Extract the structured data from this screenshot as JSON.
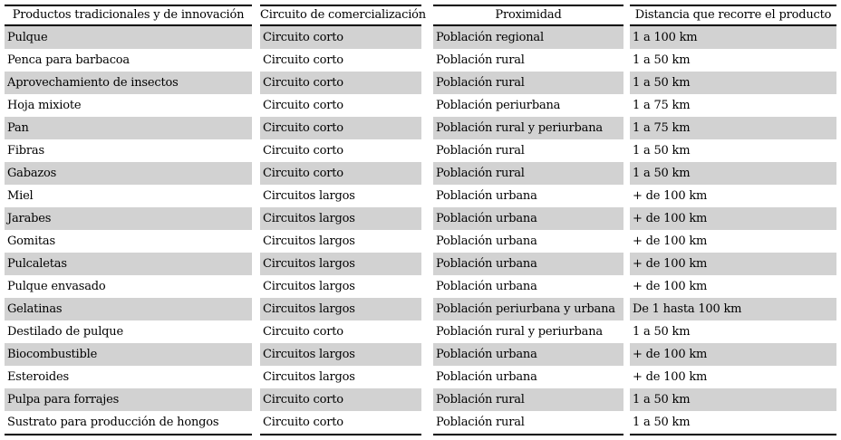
{
  "table": {
    "columns": [
      "Productos tradicionales y de innovación",
      "Circuito de comercialización",
      "Proximidad",
      "Distancia que recorre el producto"
    ],
    "rows": [
      [
        "Pulque",
        "Circuito corto",
        "Población regional",
        "1 a 100 km"
      ],
      [
        "Penca para barbacoa",
        "Circuito corto",
        "Población rural",
        "1 a 50 km"
      ],
      [
        "Aprovechamiento de insectos",
        "Circuito corto",
        "Población rural",
        "1 a 50 km"
      ],
      [
        "Hoja mixiote",
        "Circuito corto",
        "Población periurbana",
        "1 a 75 km"
      ],
      [
        "Pan",
        "Circuito corto",
        "Población rural y periurbana",
        "1 a 75 km"
      ],
      [
        "Fibras",
        "Circuito corto",
        "Población rural",
        "1 a 50 km"
      ],
      [
        "Gabazos",
        "Circuito corto",
        "Población rural",
        "1 a 50 km"
      ],
      [
        "Miel",
        "Circuitos largos",
        "Población urbana",
        "+ de 100 km"
      ],
      [
        "Jarabes",
        "Circuitos largos",
        "Población urbana",
        "+ de 100 km"
      ],
      [
        "Gomitas",
        "Circuitos largos",
        "Población urbana",
        "+ de 100 km"
      ],
      [
        "Pulcaletas",
        "Circuitos largos",
        "Población urbana",
        "+ de 100 km"
      ],
      [
        "Pulque envasado",
        "Circuitos largos",
        "Población urbana",
        "+ de 100 km"
      ],
      [
        "Gelatinas",
        "Circuitos largos",
        "Población periurbana y urbana",
        "De 1 hasta 100 km"
      ],
      [
        "Destilado de pulque",
        "Circuito corto",
        "Población rural y periurbana",
        "1 a 50 km"
      ],
      [
        "Biocombustible",
        "Circuitos largos",
        "Población urbana",
        "+ de 100 km"
      ],
      [
        "Esteroides",
        "Circuitos largos",
        "Población urbana",
        "+ de 100 km"
      ],
      [
        "Pulpa para forrajes",
        "Circuito corto",
        "Población rural",
        "1 a 50 km"
      ],
      [
        "Sustrato para producción de hongos",
        "Circuito corto",
        "Población rural",
        "1 a 50 km"
      ]
    ],
    "colors": {
      "stripe": "#d2d2d2",
      "border": "#000000",
      "background": "#ffffff",
      "text": "#000000"
    }
  }
}
